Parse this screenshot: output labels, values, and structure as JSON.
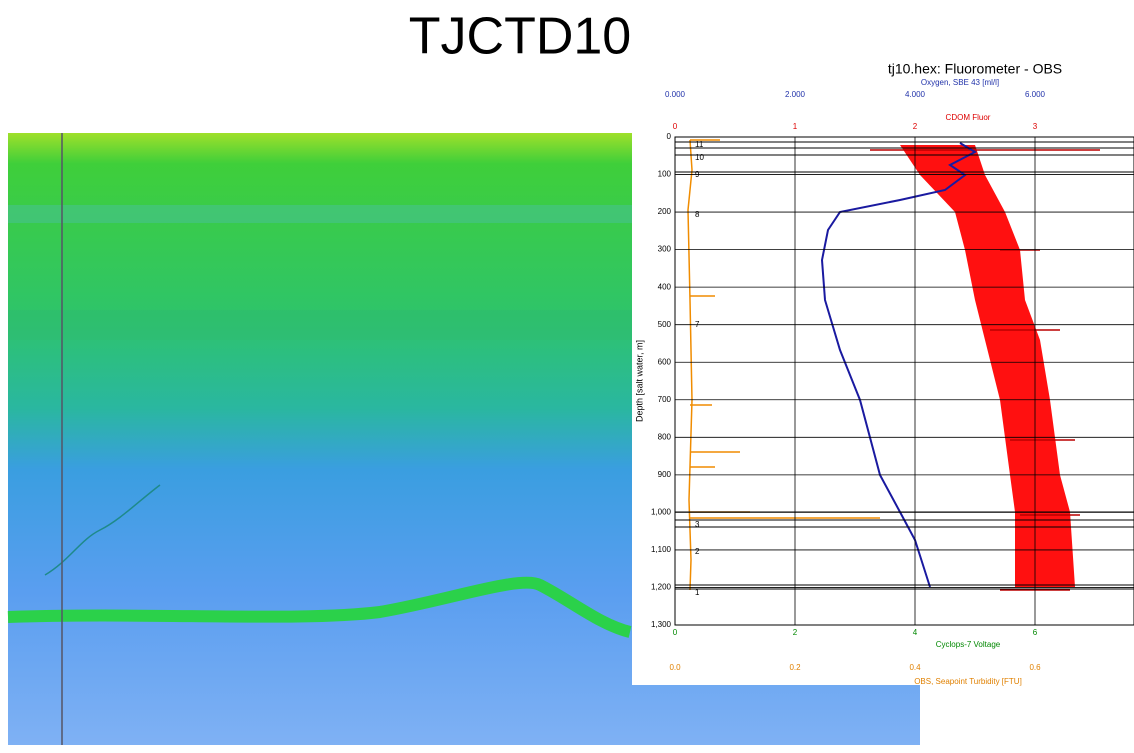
{
  "title": "TJCTD10",
  "plot": {
    "title": "tj10.hex: Fluorometer - OBS",
    "oxygen_axis": {
      "label": "Oxygen, SBE 43 [ml/l]",
      "ticks": [
        "0.000",
        "2.000",
        "4.000",
        "6.000"
      ]
    },
    "cdom_axis": {
      "label": "CDOM Fluor",
      "ticks": [
        "0",
        "1",
        "2",
        "3"
      ]
    },
    "depth_axis": {
      "label": "Depth [salt water, m]",
      "ticks": [
        "0",
        "100",
        "200",
        "300",
        "400",
        "500",
        "600",
        "700",
        "800",
        "900",
        "1,000",
        "1,100",
        "1,200",
        "1,300"
      ]
    },
    "cyclops_axis": {
      "label": "Cyclops-7 Voltage",
      "ticks": [
        "0",
        "2",
        "4",
        "6"
      ]
    },
    "obs_axis": {
      "label": "OBS, Seapoint Turbidity [FTU]",
      "ticks": [
        "0.0",
        "0.2",
        "0.4",
        "0.6"
      ]
    },
    "bottle_labels": [
      "11",
      "10",
      "9",
      "8",
      "7",
      "3",
      "2",
      "1"
    ]
  }
}
